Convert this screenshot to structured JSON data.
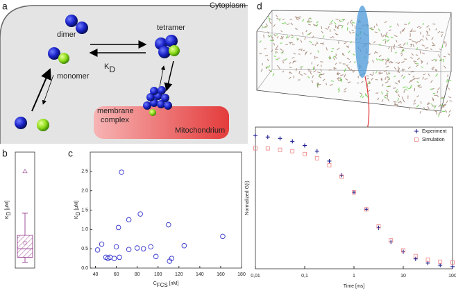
{
  "panel_labels": [
    "a",
    "b",
    "c",
    "d"
  ],
  "diagram": {
    "compartment": "Cytoplasm",
    "dimer": "dimer",
    "tetramer": "tetramer",
    "kd": {
      "main": "K",
      "sub": "D"
    },
    "monomer": "monomer",
    "membrane_complex": [
      "membrane",
      "complex"
    ],
    "mitochondrion": "Mitochondrium"
  },
  "chart_data": [
    {
      "type": "box",
      "y_label": {
        "main": "K",
        "sub": "D",
        "unit": " [µM]"
      },
      "whisker_low": 0.15,
      "q1": 0.28,
      "median": 0.5,
      "q3": 0.85,
      "whisker_high": 1.42,
      "mean": 0.65,
      "outliers": [
        2.5
      ],
      "ylim": [
        0,
        3
      ],
      "color": "#a0509a"
    },
    {
      "type": "scatter",
      "y_label": {
        "main": "K",
        "sub": "D",
        "unit": " [µM]"
      },
      "x_label": {
        "main": "C",
        "sub": "FCS",
        "unit": " [nM]"
      },
      "x": [
        42,
        46,
        50,
        52,
        54,
        58,
        60,
        62,
        63,
        65,
        72,
        72,
        80,
        83,
        86,
        93,
        98,
        110,
        111,
        113,
        125,
        162
      ],
      "values": [
        0.47,
        0.62,
        0.28,
        0.25,
        0.28,
        0.25,
        0.55,
        1.05,
        0.28,
        2.48,
        1.25,
        0.48,
        0.52,
        1.4,
        0.5,
        0.55,
        0.3,
        1.12,
        0.18,
        0.25,
        0.58,
        0.82
      ],
      "color": "#3333cc",
      "xlim": [
        35,
        180
      ],
      "xticks": [
        40,
        60,
        80,
        100,
        120,
        140,
        160,
        180
      ],
      "ylim": [
        0,
        3
      ],
      "yticks": [
        {
          "value": 0,
          "label": "0.0"
        },
        0.5,
        {
          "value": 1,
          "label": "1.0"
        },
        1.5,
        {
          "value": 2,
          "label": "2.0"
        },
        2.5
      ]
    },
    {
      "type": "line",
      "x_label": "Time [ms]",
      "y_label": "Normalized G(t)",
      "log_x": true,
      "x": [
        0.01,
        0.0178,
        0.0316,
        0.0562,
        0.1,
        0.178,
        0.316,
        0.562,
        1,
        1.78,
        3.16,
        5.62,
        10,
        17.8,
        31.6,
        56.2,
        100
      ],
      "series": [
        {
          "name": "Experiment",
          "color": "#1a1a8c",
          "marker": "plus",
          "values": [
            0.94,
            0.93,
            0.92,
            0.9,
            0.87,
            0.83,
            0.76,
            0.66,
            0.54,
            0.42,
            0.29,
            0.19,
            0.12,
            0.07,
            0.04,
            0.025,
            0.015
          ]
        },
        {
          "name": "Simulation",
          "color": "#f08080",
          "marker": "square",
          "values": [
            0.85,
            0.85,
            0.84,
            0.83,
            0.81,
            0.78,
            0.73,
            0.65,
            0.54,
            0.42,
            0.3,
            0.2,
            0.13,
            0.09,
            0.065,
            0.05,
            0.045
          ]
        }
      ],
      "xlim": [
        0.01,
        100
      ],
      "xticks": [
        {
          "value": 0.01,
          "label": "0,01"
        },
        {
          "value": 0.1,
          "label": "0,1"
        },
        1,
        10,
        100
      ],
      "ylim": [
        0,
        1
      ],
      "legend": "upper right"
    }
  ]
}
